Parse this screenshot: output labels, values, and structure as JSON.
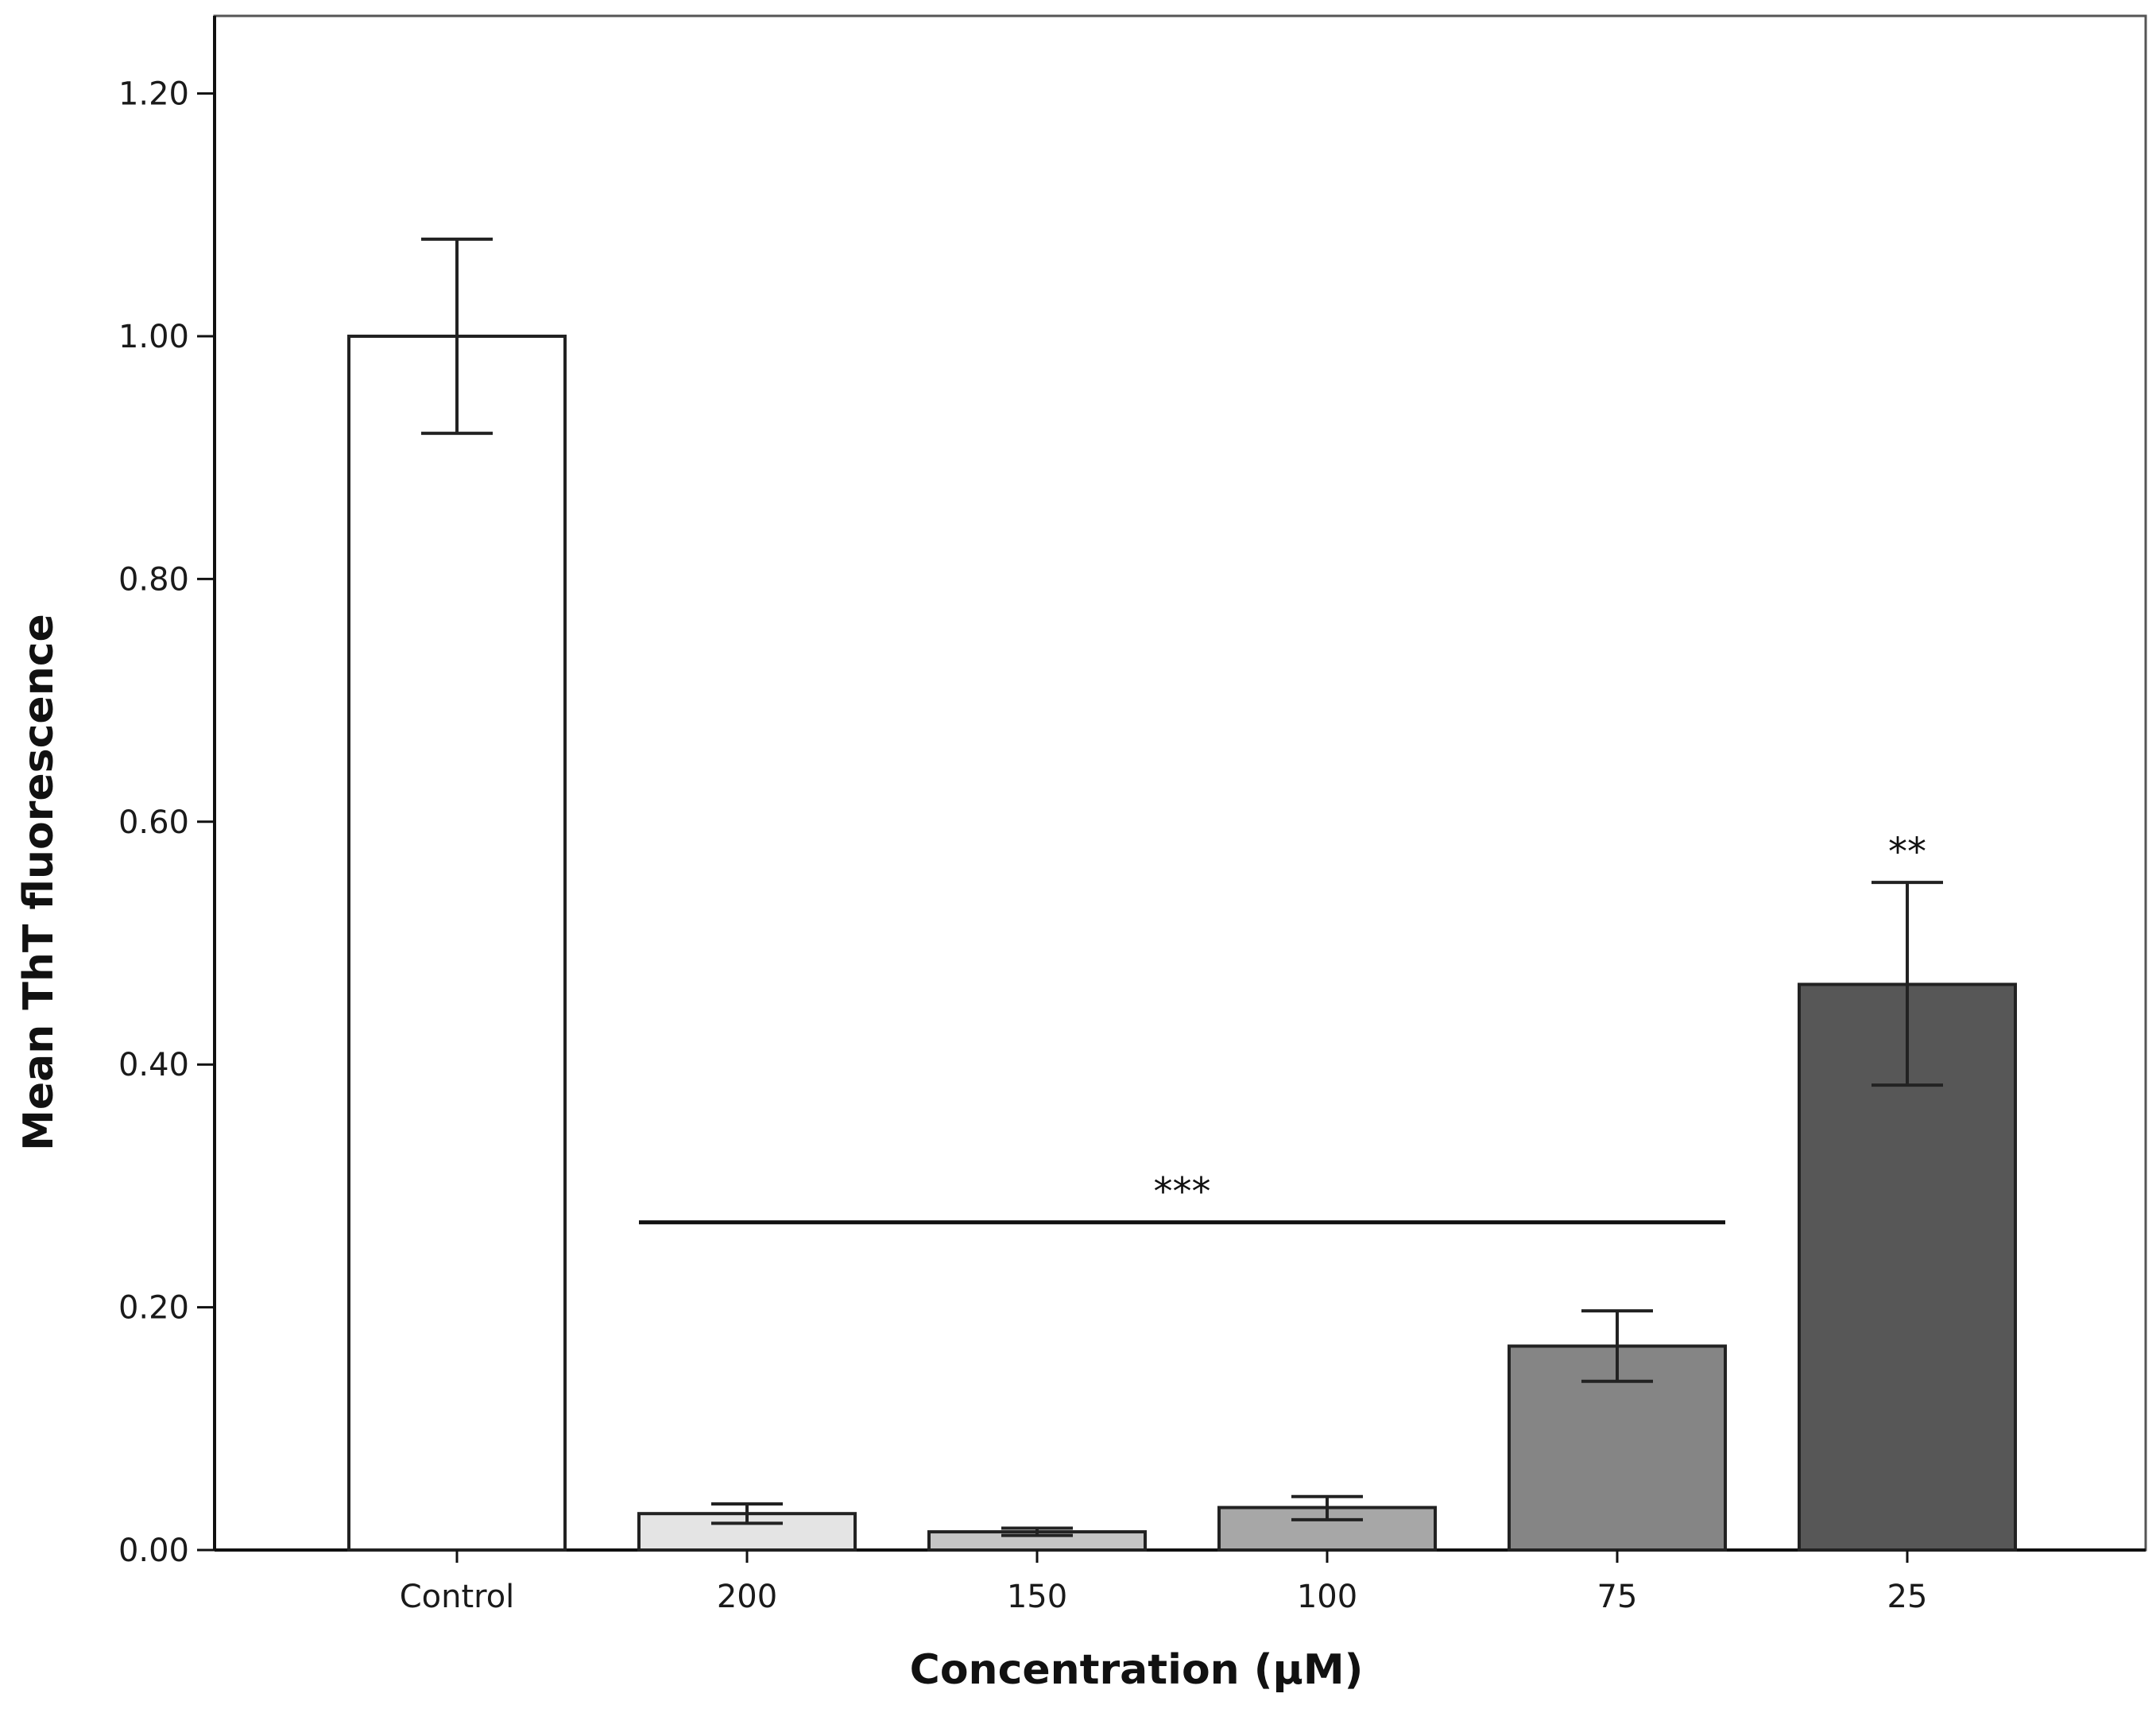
{
  "chart_data": {
    "type": "bar",
    "xlabel": "Concentration (µM)",
    "ylabel": "Mean ThT fluorescence",
    "categories": [
      "Control",
      "200",
      "150",
      "100",
      "75",
      "25"
    ],
    "values": [
      1.0,
      0.03,
      0.015,
      0.035,
      0.168,
      0.466
    ],
    "error_low": [
      0.92,
      0.022,
      0.012,
      0.025,
      0.139,
      0.383
    ],
    "error_high": [
      1.08,
      0.038,
      0.018,
      0.044,
      0.197,
      0.55
    ],
    "bar_colors": [
      "#ffffff",
      "#e4e4e4",
      "#c5c5c5",
      "#a7a7a7",
      "#858585",
      "#575757"
    ],
    "ylim": [
      0,
      1.2
    ],
    "yticks": [
      "0.00",
      "0.20",
      "0.40",
      "0.60",
      "0.80",
      "1.00",
      "1.20"
    ],
    "grid": false,
    "annotations": [
      {
        "text": "***",
        "type": "bracket",
        "from_category": "200",
        "to_category": "75",
        "y": 0.27
      },
      {
        "text": "**",
        "type": "label",
        "category": "25"
      }
    ]
  }
}
